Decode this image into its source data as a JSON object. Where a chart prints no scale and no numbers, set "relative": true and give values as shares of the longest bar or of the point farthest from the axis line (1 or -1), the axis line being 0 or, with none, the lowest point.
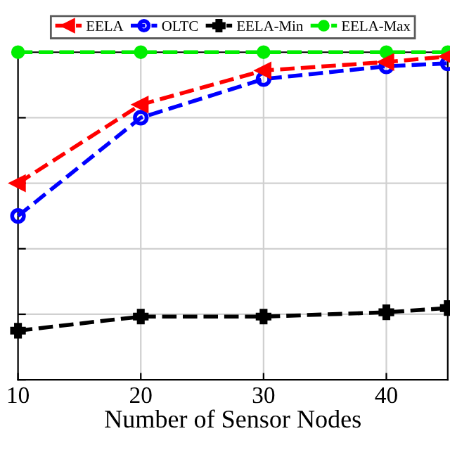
{
  "chart_data": {
    "type": "line",
    "relative": true,
    "xlabel": "Number of Sensor Nodes",
    "x": [
      10,
      20,
      30,
      40,
      45
    ],
    "xlim": [
      10,
      45
    ],
    "xticks": [
      10,
      20,
      30,
      40
    ],
    "grid": true,
    "legend": "top",
    "line_style": "dashed",
    "series": [
      {
        "name": "EELA",
        "color": "#ff0000",
        "marker": "triangle",
        "values": [
          0.6,
          0.84,
          0.944,
          0.97,
          0.987
        ]
      },
      {
        "name": "OLTC",
        "color": "#0000ff",
        "marker": "circle",
        "values": [
          0.5,
          0.8,
          0.918,
          0.957,
          0.966
        ]
      },
      {
        "name": "EELA-Min",
        "color": "#000000",
        "marker": "cross",
        "values": [
          0.15,
          0.193,
          0.193,
          0.206,
          0.219
        ]
      },
      {
        "name": "EELA-Max",
        "color": "#00ee00",
        "marker": "dot",
        "values": [
          1,
          1,
          1,
          1,
          1
        ]
      }
    ]
  }
}
